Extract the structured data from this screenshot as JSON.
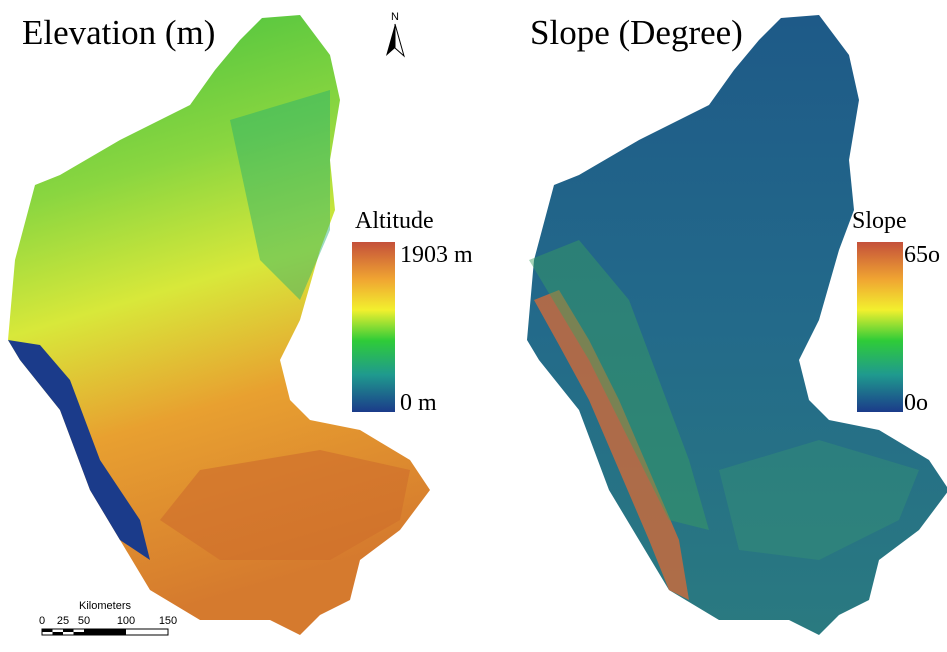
{
  "north_arrow": {
    "label": "N"
  },
  "scale_bar": {
    "title": "Kilometers",
    "ticks": [
      "0",
      "25",
      "50",
      "100",
      "150"
    ]
  },
  "panels": [
    {
      "title": "Elevation (m)",
      "legend": {
        "title": "Altitude",
        "max_label": "1903 m",
        "min_label": "0 m"
      }
    },
    {
      "title": "Slope (Degree)",
      "legend": {
        "title": "Slope",
        "max_label": "65o",
        "min_label": "0o"
      }
    }
  ]
}
